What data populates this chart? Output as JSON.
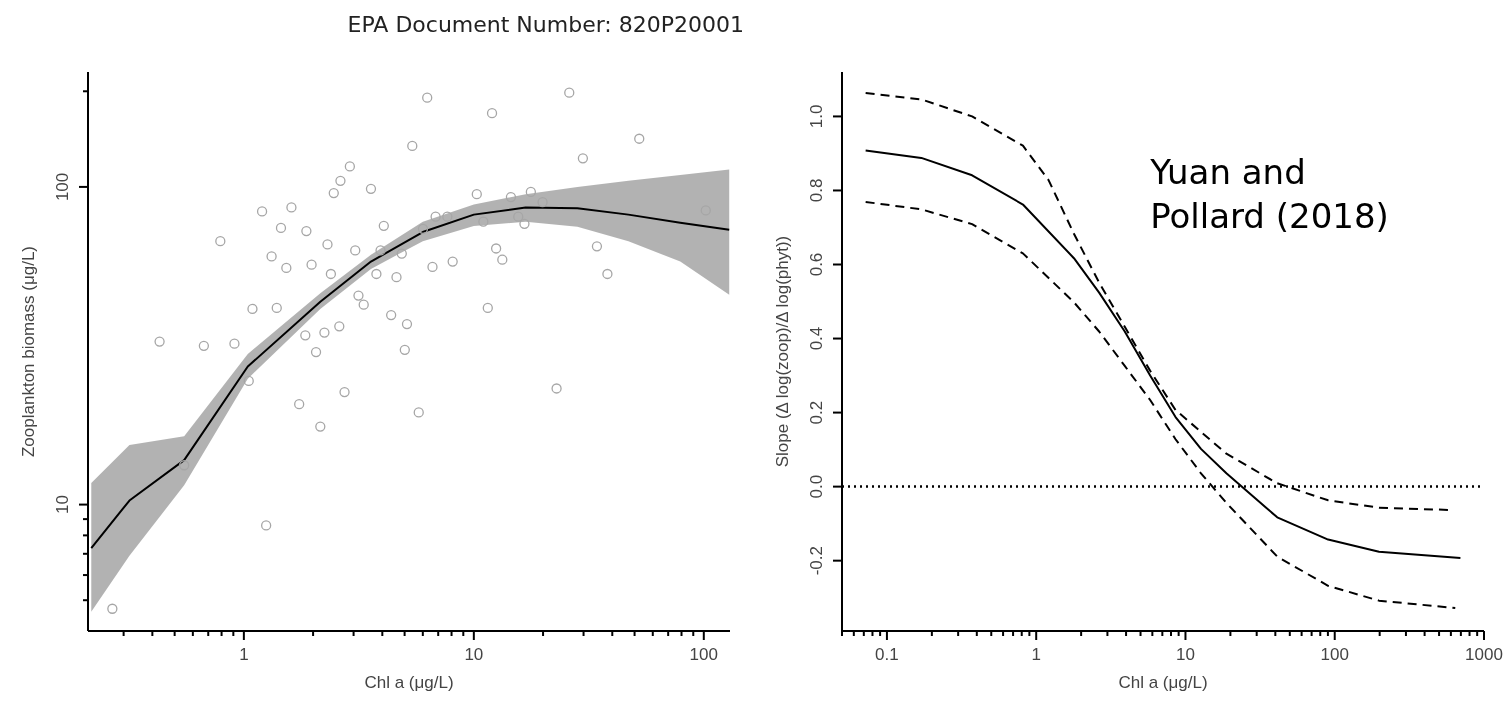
{
  "chart_data": [
    {
      "type": "scatter",
      "title": "EPA Document Number: 820P20001",
      "xlabel": "Chl a (μg/L)",
      "ylabel": "Zooplankton biomass (μg/L)",
      "log": "xy",
      "xlim": [
        0.21,
        130
      ],
      "marker": "circle",
      "ylim": [
        4,
        230
      ],
      "xticks": [
        {
          "value": 0.3,
          "label": null
        },
        {
          "value": 0.4,
          "label": null
        },
        {
          "value": 0.5,
          "label": null
        },
        {
          "value": 0.6,
          "label": null
        },
        {
          "value": 0.7,
          "label": null
        },
        {
          "value": 0.8,
          "label": null
        },
        {
          "value": 0.9,
          "label": null
        },
        1,
        {
          "value": 2,
          "label": null
        },
        {
          "value": 3,
          "label": null
        },
        {
          "value": 4,
          "label": null
        },
        {
          "value": 5,
          "label": null
        },
        {
          "value": 6,
          "label": null
        },
        {
          "value": 7,
          "label": null
        },
        {
          "value": 8,
          "label": null
        },
        {
          "value": 9,
          "label": null
        },
        10,
        {
          "value": 20,
          "label": null
        },
        {
          "value": 30,
          "label": null
        },
        {
          "value": 40,
          "label": null
        },
        {
          "value": 50,
          "label": null
        },
        {
          "value": 60,
          "label": null
        },
        {
          "value": 70,
          "label": null
        },
        {
          "value": 80,
          "label": null
        },
        {
          "value": 90,
          "label": null
        },
        100
      ],
      "yticks": [
        {
          "value": 5,
          "label": null
        },
        {
          "value": 6,
          "label": null
        },
        {
          "value": 7,
          "label": null
        },
        {
          "value": 8,
          "label": null
        },
        {
          "value": 9,
          "label": null
        },
        10,
        100,
        {
          "value": 200,
          "label": null
        }
      ],
      "grid": false,
      "legend": false,
      "series": [
        {
          "type": "scatter",
          "color": "#a6a6a6",
          "x": [
            0.268,
            0.43,
            0.67,
            0.79,
            0.91,
            0.55,
            1.05,
            1.09,
            1.2,
            1.25,
            1.32,
            1.39,
            1.45,
            1.53,
            1.61,
            1.74,
            1.85,
            1.87,
            1.97,
            2.06,
            2.15,
            2.24,
            2.31,
            2.39,
            2.46,
            2.6,
            2.63,
            2.74,
            2.89,
            3.05,
            3.15,
            3.32,
            3.57,
            3.77,
            3.93,
            4.06,
            4.37,
            4.61,
            4.86,
            5.01,
            5.12,
            5.4,
            5.76,
            6.01,
            6.27,
            6.61,
            6.82,
            7.67,
            8.09,
            10.3,
            11,
            11.5,
            12,
            12.5,
            13.3,
            14.5,
            15.6,
            16.6,
            17.7,
            19.9,
            22.9,
            26,
            29.8,
            34.3,
            38.1,
            52.4,
            102
          ],
          "values": [
            4.7,
            32.6,
            31.6,
            67.5,
            32.1,
            13.3,
            24.5,
            41.3,
            83.7,
            8.6,
            60.4,
            41.6,
            74.3,
            55.6,
            86.2,
            20.7,
            34.1,
            72.6,
            56.9,
            30.2,
            17.6,
            34.8,
            65.9,
            53.2,
            95.6,
            36.4,
            104.5,
            22.6,
            116,
            63.1,
            45.5,
            42.6,
            98.6,
            53.2,
            63.1,
            75.4,
            39.5,
            52,
            61.7,
            30.7,
            37,
            134.6,
            19.5,
            73.8,
            191,
            56,
            80.6,
            80.6,
            58.2,
            94.9,
            77.7,
            41.6,
            170.7,
            64,
            59,
            92.9,
            80.6,
            76.5,
            96.4,
            89.5,
            23.2,
            198,
            123,
            65,
            53.2,
            141.8,
            84.3
          ]
        },
        {
          "type": "line",
          "marker": "none",
          "line_style": "solid",
          "color": "#000000",
          "x": [
            0.217,
            0.318,
            0.55,
            1.04,
            2.15,
            3.57,
            6,
            10,
            16.8,
            28.2,
            47,
            79,
            129
          ],
          "values": [
            7.3,
            10.3,
            13.8,
            27.2,
            43.5,
            58.2,
            72.1,
            81.8,
            86.1,
            85.7,
            81.8,
            77.1,
            73.3
          ],
          "lower": [
            4.6,
            6.9,
            11.5,
            24.9,
            41.3,
            55.2,
            67.5,
            75.3,
            77.7,
            74.9,
            67.5,
            58.2,
            45.8
          ],
          "upper": [
            11.7,
            15.4,
            16.4,
            29.8,
            46.3,
            61.2,
            77.7,
            88.1,
            94.9,
            100,
            104.5,
            109,
            113.5
          ]
        }
      ]
    },
    {
      "type": "line",
      "xlabel": "Chl a (μg/L)",
      "ylabel": "Slope (Δ log(zoop)/Δ log(phyt))",
      "log": "x",
      "xlim": [
        0.05,
        1000
      ],
      "ylim": [
        -0.39,
        1.12
      ],
      "xticks": [
        {
          "value": 0.05,
          "label": null
        },
        {
          "value": 0.06,
          "label": null
        },
        {
          "value": 0.07,
          "label": null
        },
        {
          "value": 0.08,
          "label": null
        },
        {
          "value": 0.09,
          "label": null
        },
        0.1,
        {
          "value": 0.2,
          "label": null
        },
        {
          "value": 0.3,
          "label": null
        },
        {
          "value": 0.4,
          "label": null
        },
        {
          "value": 0.5,
          "label": null
        },
        {
          "value": 0.6,
          "label": null
        },
        {
          "value": 0.7,
          "label": null
        },
        {
          "value": 0.8,
          "label": null
        },
        {
          "value": 0.9,
          "label": null
        },
        1,
        {
          "value": 2,
          "label": null
        },
        {
          "value": 3,
          "label": null
        },
        {
          "value": 4,
          "label": null
        },
        {
          "value": 5,
          "label": null
        },
        {
          "value": 6,
          "label": null
        },
        {
          "value": 7,
          "label": null
        },
        {
          "value": 8,
          "label": null
        },
        {
          "value": 9,
          "label": null
        },
        10,
        {
          "value": 20,
          "label": null
        },
        {
          "value": 30,
          "label": null
        },
        {
          "value": 40,
          "label": null
        },
        {
          "value": 50,
          "label": null
        },
        {
          "value": 60,
          "label": null
        },
        {
          "value": 70,
          "label": null
        },
        {
          "value": 80,
          "label": null
        },
        {
          "value": 90,
          "label": null
        },
        100,
        {
          "value": 200,
          "label": null
        },
        {
          "value": 300,
          "label": null
        },
        {
          "value": 400,
          "label": null
        },
        {
          "value": 500,
          "label": null
        },
        {
          "value": 600,
          "label": null
        },
        {
          "value": 700,
          "label": null
        },
        {
          "value": 800,
          "label": null
        },
        {
          "value": 900,
          "label": null
        },
        1000
      ],
      "yticks": [
        {
          "value": -0.2,
          "label": "-0.2"
        },
        {
          "value": 0,
          "label": "0.0"
        },
        {
          "value": 0.2,
          "label": "0.2"
        },
        {
          "value": 0.4,
          "label": "0.4"
        },
        {
          "value": 0.6,
          "label": "0.6"
        },
        {
          "value": 0.8,
          "label": "0.8"
        },
        {
          "value": 1,
          "label": "1.0"
        }
      ],
      "grid": false,
      "legend": false,
      "marker": "none",
      "ref_lines": [
        {
          "axis": "y",
          "value": 0,
          "line_style": "dotted",
          "color": "#000000"
        }
      ],
      "annotations": [
        "Yuan and Pollard (2018)"
      ],
      "series": [
        {
          "line_style": "solid",
          "color": "#000000",
          "x": [
            0.072,
            0.17,
            0.372,
            0.815,
            1.79,
            2.64,
            3.92,
            5.8,
            8.58,
            12.7,
            18.8,
            41.2,
            90.3,
            198,
            695
          ],
          "values": [
            0.908,
            0.888,
            0.841,
            0.762,
            0.617,
            0.524,
            0.419,
            0.3,
            0.188,
            0.102,
            0.036,
            -0.083,
            -0.143,
            -0.176,
            -0.193
          ]
        },
        {
          "line_style": "dashed",
          "color": "#000000",
          "x": [
            0.072,
            0.17,
            0.372,
            0.815,
            1.21,
            1.79,
            2.64,
            3.92,
            5.8,
            8.58,
            18.8,
            41.2,
            90.3,
            198,
            593
          ],
          "values": [
            1.063,
            1.046,
            1,
            0.921,
            0.828,
            0.683,
            0.551,
            0.432,
            0.313,
            0.207,
            0.089,
            0.009,
            -0.037,
            -0.057,
            -0.063
          ]
        },
        {
          "line_style": "dashed",
          "color": "#000000",
          "x": [
            0.072,
            0.17,
            0.372,
            0.815,
            1.79,
            2.64,
            3.92,
            5.8,
            8.58,
            12.7,
            18.8,
            41.2,
            90.3,
            198,
            642
          ],
          "values": [
            0.769,
            0.749,
            0.709,
            0.63,
            0.498,
            0.419,
            0.326,
            0.234,
            0.128,
            0.036,
            -0.044,
            -0.189,
            -0.268,
            -0.308,
            -0.328
          ]
        }
      ]
    }
  ]
}
